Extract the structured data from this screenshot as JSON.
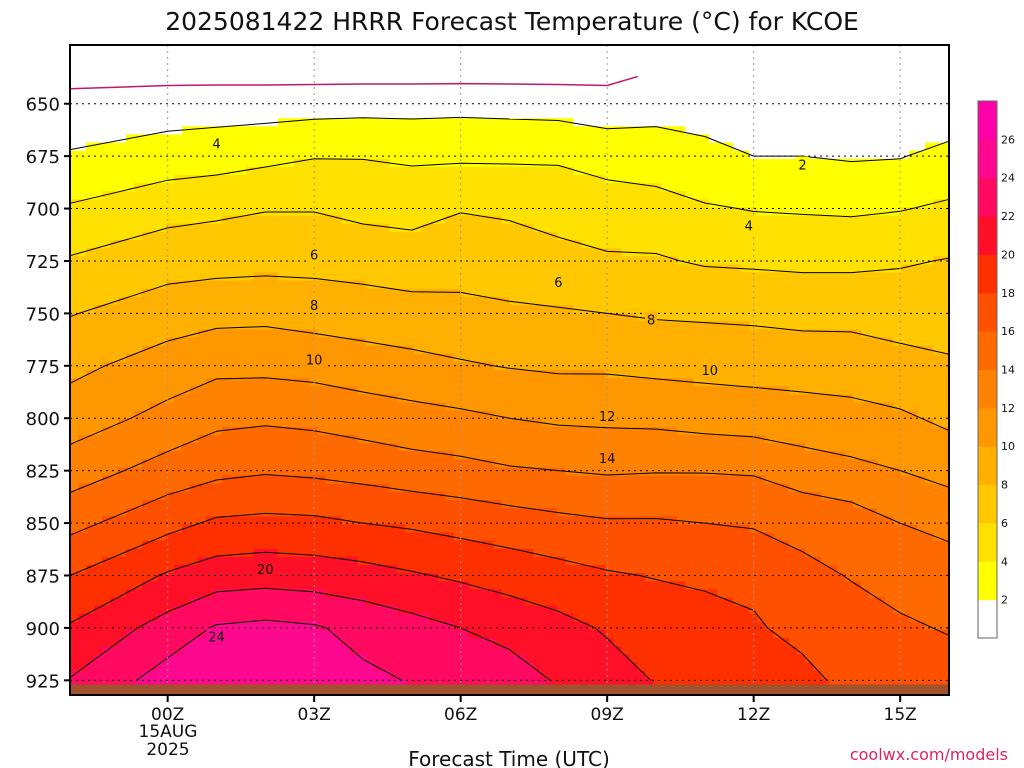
{
  "chart_data": {
    "type": "heatmap",
    "title": "2025081422 HRRR Forecast Temperature (°C) for KCOE",
    "xlabel": "Forecast Time (UTC)",
    "ylabel": "",
    "x": [
      -2,
      0,
      1,
      2,
      3,
      4,
      5,
      6,
      7,
      8,
      9,
      10,
      11,
      12,
      13,
      14,
      15,
      16
    ],
    "y": [
      637,
      650,
      675,
      700,
      725,
      750,
      775,
      800,
      825,
      850,
      875,
      900,
      925
    ],
    "z": [
      [
        -0.5,
        -0.5,
        -0.5,
        -0.5,
        -0.5,
        -0.5,
        -0.5,
        -0.5,
        -0.5,
        -0.5,
        -0.5,
        0.3,
        0.9,
        0.8,
        0.9,
        0.9,
        0.9,
        0.0
      ],
      [
        0.6,
        1.0,
        1.1,
        1.1,
        1.2,
        1.3,
        1.3,
        1.4,
        1.3,
        1.2,
        1.0,
        1.3,
        1.5,
        1.3,
        1.4,
        1.5,
        1.4,
        0.5
      ],
      [
        2.2,
        2.9,
        3.1,
        3.5,
        3.9,
        3.9,
        3.7,
        3.7,
        3.7,
        3.7,
        3.1,
        2.9,
        2.3,
        2.0,
        2.0,
        1.8,
        1.9,
        2.6
      ],
      [
        4.2,
        5.3,
        5.6,
        5.9,
        5.9,
        5.5,
        5.3,
        5.9,
        5.7,
        5.4,
        5.1,
        4.8,
        4.2,
        3.9,
        3.8,
        3.7,
        3.9,
        4.3
      ],
      [
        6.2,
        7.2,
        7.3,
        7.4,
        7.4,
        7.2,
        7.0,
        7.1,
        7.0,
        6.5,
        6.2,
        6.2,
        5.8,
        5.7,
        5.6,
        5.6,
        5.8,
        6.1
      ],
      [
        7.9,
        9.0,
        9.4,
        9.5,
        9.2,
        9.0,
        8.7,
        8.6,
        8.3,
        8.2,
        8.0,
        7.8,
        7.7,
        7.6,
        7.4,
        7.4,
        7.2,
        7.3
      ],
      [
        9.5,
        10.9,
        11.5,
        11.5,
        11.3,
        10.9,
        10.6,
        10.2,
        9.9,
        9.7,
        9.7,
        9.5,
        9.4,
        9.3,
        9.2,
        9.1,
        8.6,
        8.2
      ],
      [
        11.0,
        12.6,
        13.5,
        13.7,
        13.5,
        13.1,
        12.7,
        12.4,
        12.0,
        11.7,
        11.6,
        11.5,
        11.2,
        11.0,
        10.8,
        10.6,
        10.3,
        9.6
      ],
      [
        13.0,
        14.8,
        15.5,
        15.8,
        15.6,
        15.3,
        14.9,
        14.6,
        14.2,
        14.0,
        13.8,
        13.9,
        13.9,
        13.8,
        13.0,
        12.5,
        12.0,
        11.3
      ],
      [
        15.4,
        17.4,
        18.3,
        18.5,
        18.4,
        18.0,
        17.7,
        17.3,
        16.9,
        16.5,
        16.2,
        16.2,
        16.0,
        15.8,
        15.4,
        15.0,
        14.0,
        13.5
      ],
      [
        18.0,
        20.2,
        21.0,
        21.2,
        21.0,
        20.7,
        20.2,
        19.7,
        19.2,
        18.7,
        18.2,
        17.9,
        17.7,
        17.6,
        16.5,
        15.9,
        15.5,
        14.9
      ],
      [
        20.2,
        22.8,
        24.2,
        24.5,
        24.2,
        23.4,
        22.7,
        22.0,
        21.3,
        20.6,
        19.8,
        19.2,
        18.7,
        18.2,
        17.5,
        16.8,
        16.2,
        15.9
      ],
      [
        22.1,
        24.9,
        25.5,
        26.0,
        25.2,
        24.4,
        23.9,
        23.5,
        23.0,
        21.8,
        20.8,
        19.9,
        19.5,
        19.3,
        18.5,
        17.5,
        16.9,
        16.6
      ]
    ],
    "xticks": [
      {
        "x": 0,
        "label": "00Z"
      },
      {
        "x": 3,
        "label": "03Z"
      },
      {
        "x": 6,
        "label": "06Z"
      },
      {
        "x": 9,
        "label": "09Z"
      },
      {
        "x": 12,
        "label": "12Z"
      },
      {
        "x": 15,
        "label": "15Z"
      }
    ],
    "date_label": [
      "15AUG",
      "2025"
    ],
    "xlim": [
      -2,
      16
    ],
    "yticks": [
      650,
      675,
      700,
      725,
      750,
      775,
      800,
      825,
      850,
      875,
      900,
      925
    ],
    "ylim": [
      622,
      932
    ],
    "y_inverted": true,
    "grid": true,
    "contour_levels": [
      2,
      4,
      6,
      8,
      10,
      12,
      14,
      16,
      18,
      20,
      22,
      24,
      26
    ],
    "contour_labels": [
      {
        "text": "2",
        "x": 13.0,
        "y": 679
      },
      {
        "text": "4",
        "x": 1.0,
        "y": 669
      },
      {
        "text": "4",
        "x": 11.9,
        "y": 708
      },
      {
        "text": "6",
        "x": 3.0,
        "y": 722
      },
      {
        "text": "6",
        "x": 8.0,
        "y": 735
      },
      {
        "text": "8",
        "x": 3.0,
        "y": 746
      },
      {
        "text": "8",
        "x": 9.9,
        "y": 753
      },
      {
        "text": "10",
        "x": 3.0,
        "y": 772
      },
      {
        "text": "10",
        "x": 11.1,
        "y": 777
      },
      {
        "text": "12",
        "x": 9.0,
        "y": 799
      },
      {
        "text": "14",
        "x": 9.0,
        "y": 819
      },
      {
        "text": "20",
        "x": 2.0,
        "y": 872
      },
      {
        "text": "24",
        "x": 1.0,
        "y": 904
      }
    ],
    "colorbar": {
      "ticks": [
        2,
        4,
        6,
        8,
        10,
        12,
        14,
        16,
        18,
        20,
        22,
        24,
        26
      ],
      "colors": [
        "#ffffff",
        "#ffff00",
        "#ffe100",
        "#ffc800",
        "#ffb000",
        "#ff9800",
        "#ff8200",
        "#ff6a00",
        "#ff5000",
        "#ff3000",
        "#ff1028",
        "#ff0a60",
        "#ff0890",
        "#ff00a8"
      ]
    },
    "line_color": "#c0186e",
    "terrain_color": "#a0522d"
  },
  "credit": "coolwx.com/models"
}
